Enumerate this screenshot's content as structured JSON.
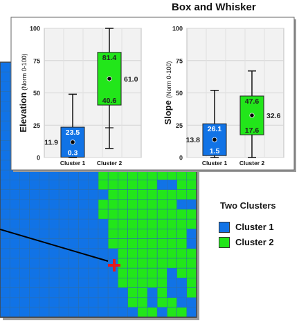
{
  "header": {
    "title": "Box and Whisker"
  },
  "legend": {
    "title": "Two Clusters",
    "items": [
      {
        "label": "Cluster 1",
        "color": "#1173e6"
      },
      {
        "label": "Cluster 2",
        "color": "#22e61a"
      }
    ]
  },
  "colors": {
    "grid_line": "#2a6fb0",
    "marker": "#e41a1c",
    "panel_bg": "#ffffff",
    "plot_bg": "#f2f2f2"
  },
  "chart_data": [
    {
      "type": "box",
      "ylabel_main": "Elevation",
      "ylabel_sub": "(Norm 0-100)",
      "categories": [
        "Cluster 1",
        "Cluster 2"
      ],
      "ylim": [
        0,
        100
      ],
      "yticks": [
        0,
        25,
        50,
        75,
        100
      ],
      "grid": true,
      "boxes": [
        {
          "name": "Cluster 1",
          "whisker_low": 0,
          "q1": 0.3,
          "q3": 23.5,
          "whisker_high": 49,
          "mean": 11.9,
          "color": "#1173e6"
        },
        {
          "name": "Cluster 2",
          "whisker_low": 7,
          "q1": 40.6,
          "q3": 81.4,
          "whisker_high": 100,
          "mean": 61.0,
          "color": "#22e61a",
          "tick_mark": 23
        }
      ]
    },
    {
      "type": "box",
      "ylabel_main": "Slope",
      "ylabel_sub": "(Norm 0-100)",
      "categories": [
        "Cluster 1",
        "Cluster 2"
      ],
      "ylim": [
        0,
        100
      ],
      "yticks": [
        0,
        25,
        50,
        75,
        100
      ],
      "grid": true,
      "boxes": [
        {
          "name": "Cluster 1",
          "whisker_low": 0,
          "q1": 1.5,
          "q3": 26.1,
          "whisker_high": 52,
          "mean": 13.8,
          "color": "#1173e6"
        },
        {
          "name": "Cluster 2",
          "whisker_low": 0,
          "q1": 17.6,
          "q3": 47.6,
          "whisker_high": 67,
          "mean": 32.6,
          "color": "#22e61a"
        }
      ]
    }
  ],
  "map": {
    "grid_rows": [
      "BBBBBBBBGGGGGGGGGGGG",
      "BBBBBBBBBGGGGGGGGGGG",
      "BBBBBBBBBGGGGGGGGGGG",
      "BBBBBBBBGGGGGGGGGGGG",
      "BBBBBBBBGGGGGGGGGGGG",
      "BBBBBBBBBGGGGGGGGGGG",
      "BBBBBBBBBGGGGGGGGGGG",
      "BBBBBBBBBBGGGGGGGGGG",
      "BBBBBBBBBBGGGGGGGGGG",
      "BBBBBBBBBBGGGGGGGGGG",
      "BBBBBBBBBBGGGGGGGGGG",
      "BBBBBBBBBBGGGGGGGGGG",
      "BBBBBBBBBBGGGGGGBBGG",
      "BBBBBBBBBBBGGGGGGGGG",
      "BBBBBBBBBBGGGGGGGGBB",
      "BBBBBBBBBBGGGGGGGGGG",
      "BBBBBBBBBBBGGGGGGGGG",
      "BBBBBBBBBBBGGGGGGGGB",
      "BBBBBBBBBBBGGGGGGGGB",
      "BBBBBBBBBBBBGGGGGGGG",
      "BBBBBBBBBBBBGGGGGGGG",
      "BBBBBBBBBBBBGGGGGBGG",
      "BBBBBBBBBBBBGGGGGBBG",
      "BBBBBBBBBBBBBGGBGBBG",
      "BBBBBBBBBBBBBGGBGGBB",
      "BBBBBBBBBBBBBBGGBGGB"
    ]
  }
}
